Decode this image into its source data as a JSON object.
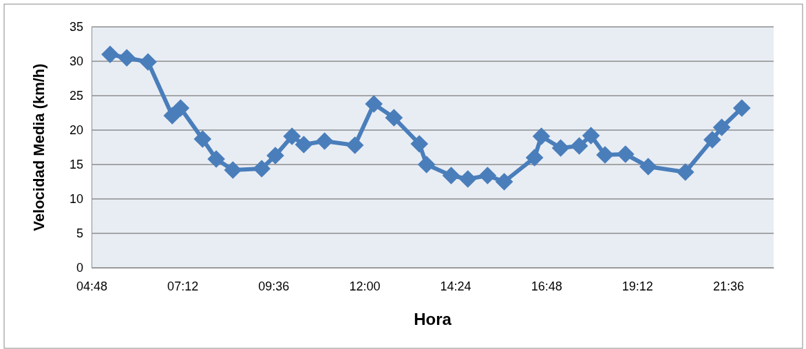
{
  "chart_data": {
    "type": "line",
    "xlabel": "Hora",
    "ylabel": "Velocidad Media (km/h)",
    "x": [
      5.29,
      5.73,
      6.29,
      6.93,
      7.15,
      7.73,
      8.09,
      8.53,
      9.29,
      9.65,
      10.09,
      10.4,
      10.95,
      11.75,
      12.25,
      12.78,
      13.45,
      13.64,
      14.29,
      14.73,
      15.25,
      15.69,
      16.49,
      16.67,
      17.18,
      17.67,
      17.98,
      18.35,
      18.89,
      19.49,
      20.47,
      21.18,
      21.43,
      21.96
    ],
    "series": [
      {
        "color": "#4a7ebb",
        "values": [
          31.0,
          30.5,
          29.9,
          22.1,
          23.2,
          18.7,
          15.8,
          14.2,
          14.4,
          16.3,
          19.1,
          17.9,
          18.4,
          17.8,
          23.8,
          21.8,
          18.0,
          15.0,
          13.4,
          12.9,
          13.4,
          12.5,
          16.0,
          19.1,
          17.4,
          17.7,
          19.2,
          16.4,
          16.5,
          14.7,
          13.9,
          18.6,
          20.4,
          23.2
        ]
      }
    ],
    "xlim": [
      4.8,
      22.8
    ],
    "xticks": [
      {
        "value": 4.8,
        "label": "04:48"
      },
      {
        "value": 7.2,
        "label": "07:12"
      },
      {
        "value": 9.6,
        "label": "09:36"
      },
      {
        "value": 12,
        "label": "12:00"
      },
      {
        "value": 14.4,
        "label": "14:24"
      },
      {
        "value": 16.8,
        "label": "16:48"
      },
      {
        "value": 19.2,
        "label": "19:12"
      },
      {
        "value": 21.6,
        "label": "21:36"
      }
    ],
    "ylim": [
      0,
      35
    ],
    "yticks": [
      0,
      5,
      10,
      15,
      20,
      25,
      30,
      35
    ],
    "grid": "y",
    "marker": "diamond",
    "line_style": "solid"
  }
}
